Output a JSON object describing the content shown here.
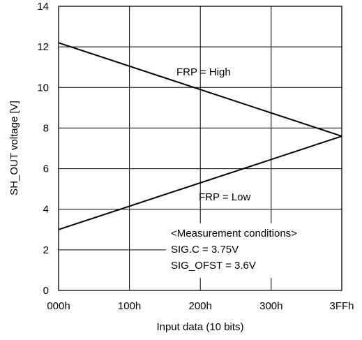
{
  "chart_data": {
    "type": "line",
    "xlabel": "Input data (10 bits)",
    "ylabel": "SH_OUT voltage [V]",
    "x_ticks": [
      "000h",
      "100h",
      "200h",
      "300h",
      "3FFh"
    ],
    "x_tick_values": [
      0,
      256,
      512,
      768,
      1023
    ],
    "xlim": [
      0,
      1023
    ],
    "y_ticks": [
      "0",
      "2",
      "4",
      "6",
      "8",
      "10",
      "12",
      "14"
    ],
    "y_tick_values": [
      0,
      2,
      4,
      6,
      8,
      10,
      12,
      14
    ],
    "ylim": [
      0,
      14
    ],
    "grid": true,
    "series": [
      {
        "name": "FRP = High",
        "x": [
          0,
          1023
        ],
        "y": [
          12.2,
          7.6
        ]
      },
      {
        "name": "FRP = Low",
        "x": [
          0,
          1023
        ],
        "y": [
          3.0,
          7.6
        ]
      }
    ],
    "annotations": {
      "frp_high": "FRP = High",
      "frp_low": "FRP = Low",
      "conditions": [
        "<Measurement conditions>",
        "SIG.C = 3.75V",
        "SIG_OFST = 3.6V"
      ]
    }
  }
}
